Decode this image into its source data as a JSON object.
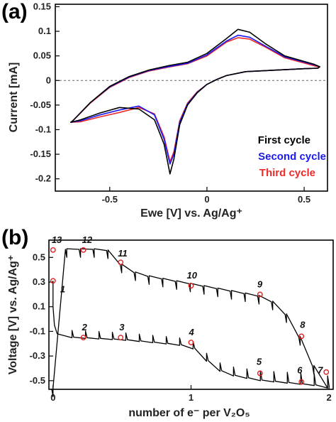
{
  "chart_data": [
    {
      "panel_label": "(a)",
      "type": "line",
      "xlabel": "Ewe [V] vs. Ag/Ag⁺",
      "ylabel": "Current [mA]",
      "xlim": [
        -0.78,
        0.62
      ],
      "ylim": [
        -0.225,
        0.155
      ],
      "x_ticks": [
        -0.5,
        0,
        0.5
      ],
      "x_tick_labels": [
        "-0.5",
        "0",
        "0.5"
      ],
      "y_ticks": [
        0.15,
        0.1,
        0.05,
        0,
        -0.05,
        -0.1,
        -0.15,
        -0.2
      ],
      "y_tick_labels": [
        "0.15",
        "0.1",
        "0.05",
        "0",
        "-0.05",
        "-0.1",
        "-0.15",
        "-0.2"
      ],
      "zero_line": "dashed",
      "legend": {
        "placement": "bottom-right"
      },
      "series": [
        {
          "name": "First cycle",
          "color": "#000000",
          "x": [
            0.55,
            0.4,
            0.3,
            0.22,
            0.16,
            0.1,
            0.0,
            -0.1,
            -0.2,
            -0.3,
            -0.4,
            -0.5,
            -0.6,
            -0.69,
            -0.7,
            -0.65,
            -0.55,
            -0.45,
            -0.35,
            -0.27,
            -0.22,
            -0.19,
            -0.17,
            -0.14,
            -0.1,
            -0.05,
            0.0,
            0.05,
            0.1,
            0.2,
            0.3,
            0.4,
            0.5,
            0.57,
            0.58,
            0.55
          ],
          "y": [
            0.033,
            0.05,
            0.075,
            0.098,
            0.104,
            0.085,
            0.055,
            0.037,
            0.03,
            0.021,
            0.008,
            -0.012,
            -0.045,
            -0.082,
            -0.085,
            -0.08,
            -0.066,
            -0.055,
            -0.058,
            -0.08,
            -0.13,
            -0.19,
            -0.16,
            -0.09,
            -0.05,
            -0.025,
            -0.008,
            0.002,
            0.01,
            0.018,
            0.02,
            0.022,
            0.024,
            0.025,
            0.028,
            0.033
          ]
        },
        {
          "name": "Second cycle",
          "color": "#1a1af0",
          "x": [
            0.55,
            0.4,
            0.3,
            0.22,
            0.16,
            0.1,
            0.0,
            -0.1,
            -0.2,
            -0.3,
            -0.4,
            -0.5,
            -0.6,
            -0.69,
            -0.7,
            -0.65,
            -0.55,
            -0.45,
            -0.35,
            -0.27,
            -0.22,
            -0.19,
            -0.17,
            -0.14,
            -0.1,
            -0.05,
            0.0,
            0.05,
            0.1,
            0.2,
            0.3,
            0.4,
            0.5,
            0.57,
            0.58,
            0.55
          ],
          "y": [
            0.032,
            0.048,
            0.07,
            0.088,
            0.092,
            0.08,
            0.052,
            0.035,
            0.028,
            0.02,
            0.007,
            -0.013,
            -0.045,
            -0.082,
            -0.085,
            -0.082,
            -0.07,
            -0.06,
            -0.052,
            -0.07,
            -0.12,
            -0.17,
            -0.15,
            -0.085,
            -0.048,
            -0.024,
            -0.008,
            0.002,
            0.01,
            0.018,
            0.02,
            0.022,
            0.024,
            0.025,
            0.028,
            0.032
          ]
        },
        {
          "name": "Third cycle",
          "color": "#ee2b2b",
          "x": [
            0.55,
            0.4,
            0.3,
            0.22,
            0.16,
            0.1,
            0.0,
            -0.1,
            -0.2,
            -0.3,
            -0.4,
            -0.5,
            -0.6,
            -0.69,
            -0.7,
            -0.65,
            -0.55,
            -0.45,
            -0.35,
            -0.27,
            -0.22,
            -0.19,
            -0.17,
            -0.14,
            -0.1,
            -0.05,
            0.0,
            0.05,
            0.1,
            0.2,
            0.3,
            0.4,
            0.5,
            0.57,
            0.58,
            0.55
          ],
          "y": [
            0.03,
            0.046,
            0.068,
            0.084,
            0.087,
            0.078,
            0.05,
            0.034,
            0.027,
            0.019,
            0.006,
            -0.014,
            -0.046,
            -0.082,
            -0.085,
            -0.084,
            -0.074,
            -0.065,
            -0.055,
            -0.068,
            -0.115,
            -0.165,
            -0.145,
            -0.082,
            -0.046,
            -0.023,
            -0.008,
            0.002,
            0.01,
            0.018,
            0.02,
            0.022,
            0.024,
            0.025,
            0.027,
            0.03
          ]
        }
      ]
    },
    {
      "panel_label": "(b)",
      "type": "line",
      "xlabel": "number of e⁻ per V₂O₅",
      "ylabel": "Voltage [V] vs. Ag/Ag⁺",
      "xlim": [
        -0.03,
        2.03
      ],
      "ylim": [
        -0.57,
        0.64
      ],
      "x_ticks": [
        0,
        1,
        2
      ],
      "x_tick_labels": [
        "0",
        "1",
        "2"
      ],
      "y_ticks": [
        0.5,
        0.3,
        0.1,
        -0.1,
        -0.3,
        -0.5
      ],
      "y_tick_labels": [
        "0.5",
        "0.3",
        "0.1",
        "-0.1",
        "-0.3",
        "-0.5"
      ],
      "pulse_count_discharge": 20,
      "pulse_count_charge": 20,
      "series": [
        {
          "name": "",
          "color": "#000000",
          "x": [
            0.0,
            0.0,
            0.01,
            0.03,
            0.06,
            0.1,
            0.2,
            0.3,
            0.4,
            0.5,
            0.6,
            0.7,
            0.8,
            0.9,
            1.0,
            1.05,
            1.1,
            1.15,
            1.2,
            1.3,
            1.4,
            1.5,
            1.6,
            1.7,
            1.8,
            1.9,
            1.95,
            1.99
          ],
          "y": [
            0.31,
            0.1,
            -0.05,
            -0.12,
            -0.14,
            -0.15,
            -0.155,
            -0.16,
            -0.165,
            -0.17,
            -0.18,
            -0.19,
            -0.2,
            -0.21,
            -0.23,
            -0.27,
            -0.33,
            -0.38,
            -0.42,
            -0.46,
            -0.48,
            -0.5,
            -0.51,
            -0.52,
            -0.53,
            -0.54,
            -0.55,
            -0.56
          ]
        },
        {
          "name": "",
          "color": "#000000",
          "x": [
            1.99,
            1.95,
            1.9,
            1.85,
            1.8,
            1.75,
            1.7,
            1.65,
            1.6,
            1.55,
            1.5,
            1.45,
            1.4,
            1.3,
            1.2,
            1.1,
            1.0,
            0.9,
            0.8,
            0.7,
            0.6,
            0.55,
            0.5,
            0.48,
            0.45,
            0.4,
            0.3,
            0.2,
            0.1,
            0.0
          ],
          "y": [
            -0.56,
            -0.5,
            -0.4,
            -0.28,
            -0.16,
            -0.06,
            0.03,
            0.1,
            0.14,
            0.17,
            0.19,
            0.2,
            0.21,
            0.23,
            0.25,
            0.27,
            0.29,
            0.31,
            0.33,
            0.35,
            0.38,
            0.41,
            0.44,
            0.48,
            0.52,
            0.56,
            0.57,
            0.57,
            0.57,
            0.57
          ]
        }
      ],
      "points": [
        {
          "label": "1",
          "x": 0.0,
          "y": 0.31
        },
        {
          "label": "2",
          "x": 0.22,
          "y": -0.15
        },
        {
          "label": "3",
          "x": 0.49,
          "y": -0.15
        },
        {
          "label": "4",
          "x": 1.0,
          "y": -0.19
        },
        {
          "label": "5",
          "x": 1.5,
          "y": -0.44
        },
        {
          "label": "6",
          "x": 1.8,
          "y": -0.51
        },
        {
          "label": "7",
          "x": 1.98,
          "y": -0.43
        },
        {
          "label": "8",
          "x": 1.8,
          "y": -0.14
        },
        {
          "label": "9",
          "x": 1.5,
          "y": 0.2
        },
        {
          "label": "10",
          "x": 1.0,
          "y": 0.27
        },
        {
          "label": "11",
          "x": 0.49,
          "y": 0.46
        },
        {
          "label": "12",
          "x": 0.22,
          "y": 0.56
        },
        {
          "label": "13",
          "x": 0.0,
          "y": 0.56
        }
      ]
    }
  ]
}
